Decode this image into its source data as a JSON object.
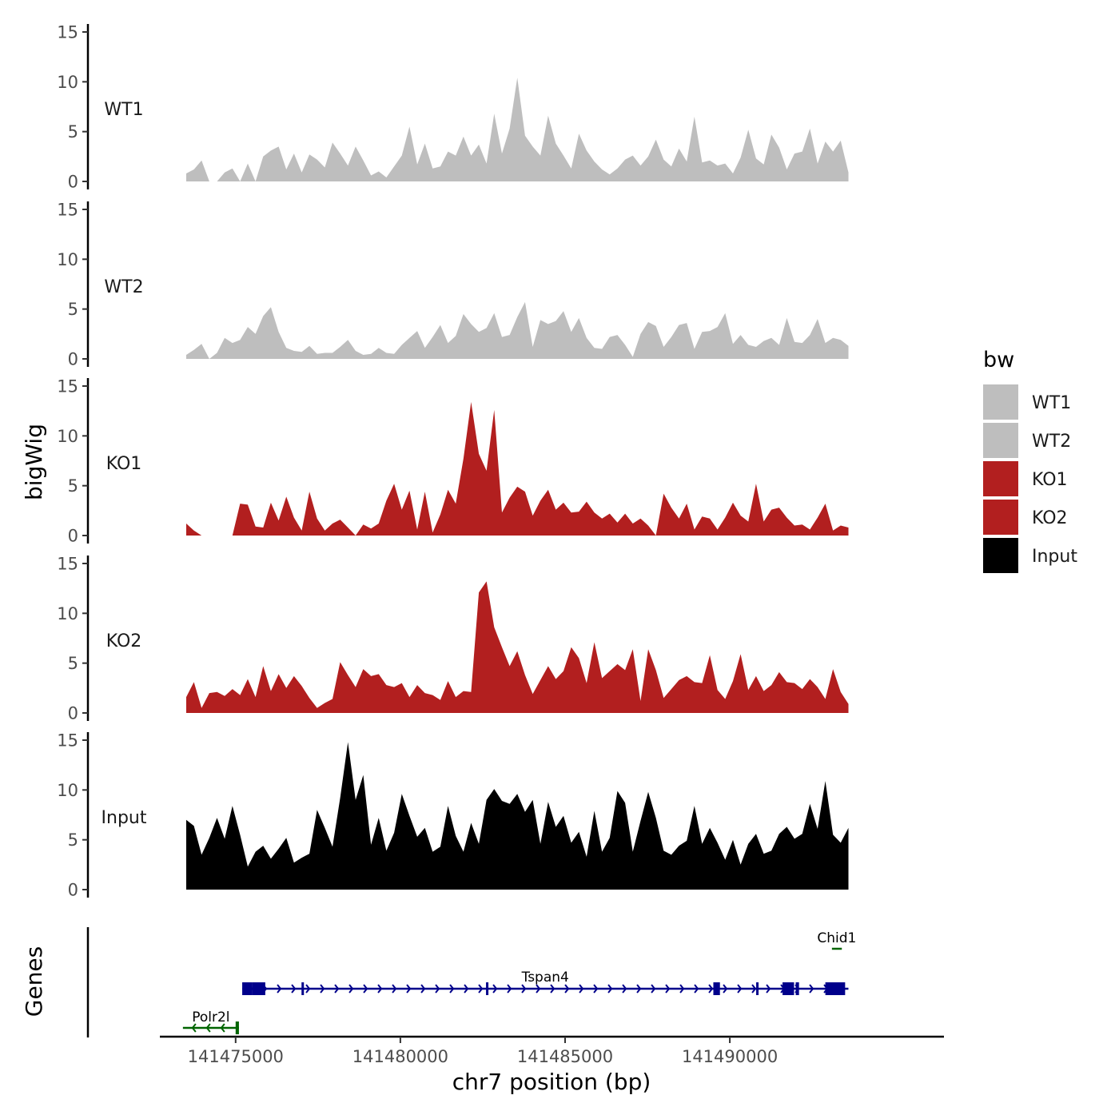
{
  "chart_data": {
    "type": "area",
    "ylabel": "bigWig",
    "xlabel": "chr7 position (bp)",
    "genes_label": "Genes",
    "xlim": [
      141472700,
      141496500
    ],
    "data_range": [
      141473500,
      141493600
    ],
    "ylim": [
      0,
      15
    ],
    "yticks": [
      0,
      5,
      10,
      15
    ],
    "ytick_labels": [
      "0",
      "5",
      "10",
      "15"
    ],
    "xticks": [
      141475000,
      141480000,
      141485000,
      141490000
    ],
    "xtick_labels": [
      "141475000",
      "141480000",
      "141485000",
      "141490000"
    ],
    "series": [
      {
        "name": "WT1",
        "color": "#bebebe",
        "values": [
          0.8,
          1.2,
          2.1,
          0,
          0,
          0.9,
          1.3,
          0,
          1.8,
          0,
          2.5,
          3.1,
          3.5,
          1.2,
          2.8,
          0.9,
          2.7,
          2.2,
          1.4,
          3.9,
          2.8,
          1.6,
          3.5,
          2.1,
          0.6,
          1.0,
          0.4,
          1.5,
          2.6,
          5.5,
          1.7,
          3.8,
          1.3,
          1.5,
          3.0,
          2.6,
          4.5,
          2.6,
          3.7,
          1.8,
          6.8,
          2.8,
          5.3,
          10.4,
          4.6,
          3.5,
          2.6,
          6.6,
          3.8,
          2.6,
          1.3,
          4.8,
          3.1,
          2.0,
          1.2,
          0.7,
          1.3,
          2.2,
          2.6,
          1.6,
          2.5,
          4.2,
          2.2,
          1.5,
          3.3,
          2.0,
          6.5,
          1.9,
          2.1,
          1.6,
          1.8,
          0.8,
          2.4,
          5.2,
          2.3,
          1.7,
          4.7,
          3.4,
          1.2,
          2.8,
          3.0,
          5.3,
          1.8,
          4.0,
          3.0,
          4.1,
          0.9
        ]
      },
      {
        "name": "WT2",
        "color": "#bebebe",
        "values": [
          0.4,
          0.9,
          1.5,
          0,
          0.6,
          2.1,
          1.6,
          1.9,
          3.2,
          2.5,
          4.3,
          5.2,
          2.7,
          1.1,
          0.8,
          0.7,
          1.3,
          0.5,
          0.6,
          0.6,
          1.2,
          1.9,
          0.8,
          0.4,
          0.5,
          1.1,
          0.6,
          0.5,
          1.4,
          2.1,
          2.8,
          1.1,
          2.2,
          3.4,
          1.6,
          2.3,
          4.5,
          3.5,
          2.7,
          3.1,
          4.6,
          2.2,
          2.4,
          4.2,
          5.7,
          1.2,
          3.9,
          3.5,
          3.8,
          4.8,
          2.7,
          4.1,
          2.1,
          1.1,
          1.0,
          2.2,
          2.4,
          1.4,
          0.2,
          2.5,
          3.7,
          3.3,
          1.2,
          2.2,
          3.4,
          3.6,
          1.0,
          2.7,
          2.8,
          3.2,
          4.6,
          1.5,
          2.4,
          1.4,
          1.2,
          1.8,
          2.1,
          1.4,
          4.1,
          1.7,
          1.6,
          2.4,
          4.0,
          1.6,
          2.1,
          1.9,
          1.3
        ]
      },
      {
        "name": "KO1",
        "color": "#b21f1f",
        "values": [
          1.2,
          0.5,
          0,
          0,
          0,
          0,
          0,
          3.2,
          3.1,
          0.9,
          0.8,
          3.3,
          1.5,
          3.9,
          1.8,
          0.5,
          4.4,
          1.7,
          0.5,
          1.2,
          1.6,
          0.8,
          0,
          1.1,
          0.7,
          1.2,
          3.5,
          5.2,
          2.6,
          4.5,
          0.6,
          4.4,
          0.3,
          2.1,
          4.6,
          3.2,
          7.7,
          13.4,
          8.2,
          6.5,
          12.6,
          2.3,
          3.8,
          4.9,
          4.4,
          2.0,
          3.5,
          4.6,
          2.6,
          3.3,
          2.3,
          2.4,
          3.4,
          2.3,
          1.7,
          2.2,
          1.3,
          2.2,
          1.2,
          1.7,
          1.0,
          0,
          4.2,
          2.8,
          1.7,
          3.2,
          0.6,
          1.9,
          1.7,
          0.6,
          1.8,
          3.3,
          2.0,
          1.4,
          5.2,
          1.4,
          2.6,
          2.8,
          1.8,
          1.0,
          1.1,
          0.6,
          1.8,
          3.2,
          0.5,
          1.0,
          0.8
        ]
      },
      {
        "name": "KO2",
        "color": "#b21f1f",
        "values": [
          1.6,
          3.1,
          0.5,
          2.0,
          2.1,
          1.7,
          2.4,
          1.8,
          3.4,
          1.6,
          4.7,
          2.2,
          3.9,
          2.5,
          3.7,
          2.7,
          1.5,
          0.5,
          1.0,
          1.4,
          5.1,
          3.8,
          2.6,
          4.4,
          3.7,
          3.9,
          2.8,
          2.6,
          3.0,
          1.6,
          2.8,
          2.0,
          1.8,
          1.3,
          3.2,
          1.6,
          2.2,
          2.1,
          12.1,
          13.2,
          8.6,
          6.6,
          4.7,
          6.2,
          3.8,
          1.9,
          3.3,
          4.7,
          3.4,
          4.2,
          6.6,
          5.5,
          3.0,
          7.1,
          3.5,
          4.2,
          4.9,
          4.3,
          6.4,
          1.2,
          6.4,
          4.3,
          1.5,
          2.4,
          3.3,
          3.7,
          3.1,
          3.0,
          5.8,
          2.3,
          1.4,
          3.2,
          5.9,
          2.3,
          3.7,
          2.2,
          2.8,
          4.1,
          3.1,
          3.0,
          2.4,
          3.4,
          2.6,
          1.4,
          4.4,
          2.1,
          0.9
        ]
      },
      {
        "name": "Input",
        "color": "#000000",
        "values": [
          7.0,
          6.4,
          3.5,
          5.2,
          7.2,
          5.1,
          8.4,
          5.5,
          2.3,
          3.8,
          4.4,
          3.1,
          4.1,
          5.2,
          2.7,
          3.2,
          3.6,
          8.0,
          6.2,
          4.3,
          9.2,
          14.8,
          9.0,
          11.5,
          4.5,
          7.2,
          3.9,
          5.7,
          9.6,
          7.4,
          5.3,
          6.2,
          3.8,
          4.3,
          8.4,
          5.4,
          3.8,
          6.7,
          4.6,
          9.0,
          10.1,
          8.9,
          8.6,
          9.6,
          7.8,
          9.0,
          4.6,
          8.8,
          6.3,
          7.4,
          4.7,
          5.8,
          3.3,
          7.9,
          3.8,
          5.2,
          9.9,
          8.7,
          3.8,
          6.9,
          9.8,
          7.2,
          3.9,
          3.5,
          4.4,
          4.9,
          8.4,
          4.6,
          6.2,
          4.7,
          3.0,
          5.0,
          2.5,
          4.6,
          5.6,
          3.6,
          3.9,
          5.6,
          6.3,
          5.1,
          5.6,
          8.6,
          6.1,
          10.9,
          5.5,
          4.7,
          6.2
        ]
      }
    ],
    "genes": [
      {
        "name": "Tspan4",
        "start": 141475200,
        "end": 141493600,
        "strand": "+",
        "color": "#00008b",
        "exons": [
          [
            141475200,
            141475500
          ],
          [
            141475500,
            141475900
          ],
          [
            141477000,
            141477050
          ],
          [
            141482600,
            141482650
          ],
          [
            141489500,
            141489700
          ],
          [
            141490800,
            141490850
          ],
          [
            141491600,
            141491950
          ],
          [
            141492000,
            141492100
          ],
          [
            141492900,
            141493500
          ]
        ]
      },
      {
        "name": "Polr2l",
        "start": 141473400,
        "end": 141475100,
        "strand": "-",
        "color": "#006400",
        "exons": [
          [
            141475000,
            141475100
          ]
        ]
      },
      {
        "name": "Chid1",
        "start": 141493100,
        "end": 141493400,
        "strand": "-",
        "color": "#006400",
        "exons": []
      }
    ],
    "legend": {
      "title": "bw",
      "position": "right",
      "entries": [
        {
          "label": "WT1",
          "color": "#bebebe"
        },
        {
          "label": "WT2",
          "color": "#bebebe"
        },
        {
          "label": "KO1",
          "color": "#b21f1f"
        },
        {
          "label": "KO2",
          "color": "#b21f1f"
        },
        {
          "label": "Input",
          "color": "#000000"
        }
      ]
    }
  }
}
